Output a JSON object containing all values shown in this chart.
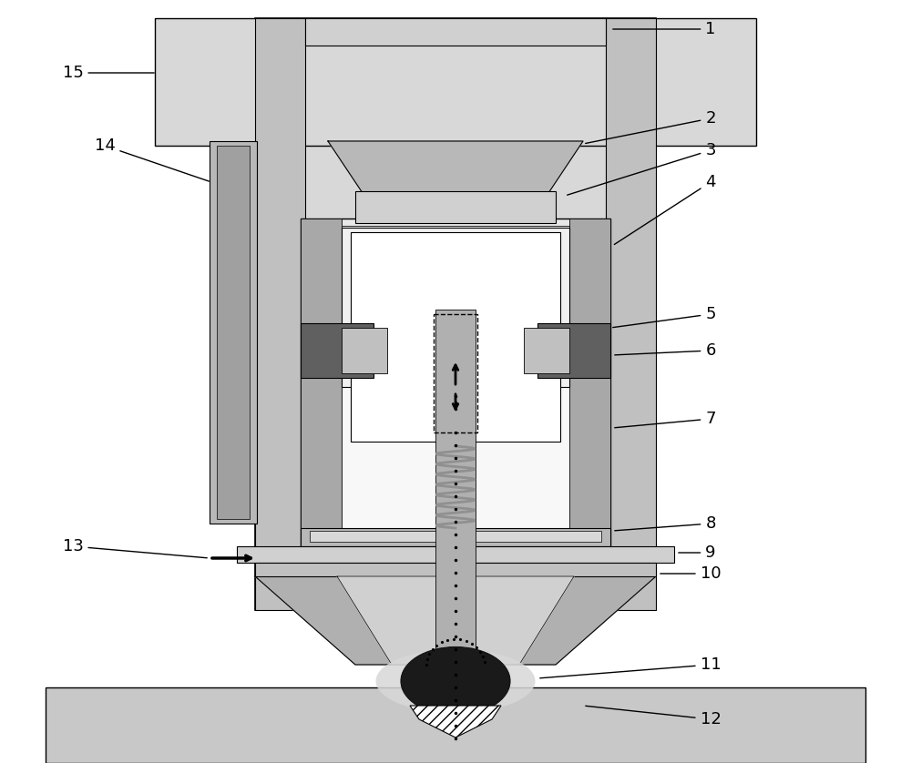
{
  "bg": "#ffffff",
  "stipple_gray": "#d8d8d8",
  "light_gray": "#cccccc",
  "medium_gray": "#b0b0b0",
  "dark_gray": "#888888",
  "darker_gray": "#666666",
  "very_dark": "#222222",
  "inner_white": "#f5f5f5",
  "panel_gray": "#e0e0e0",
  "coil_gray": "#999999",
  "magnet_dark": "#555555",
  "nozzle_gray": "#aaaaaa",
  "arc_black": "#111111",
  "weld_light": "#e8e8e8"
}
